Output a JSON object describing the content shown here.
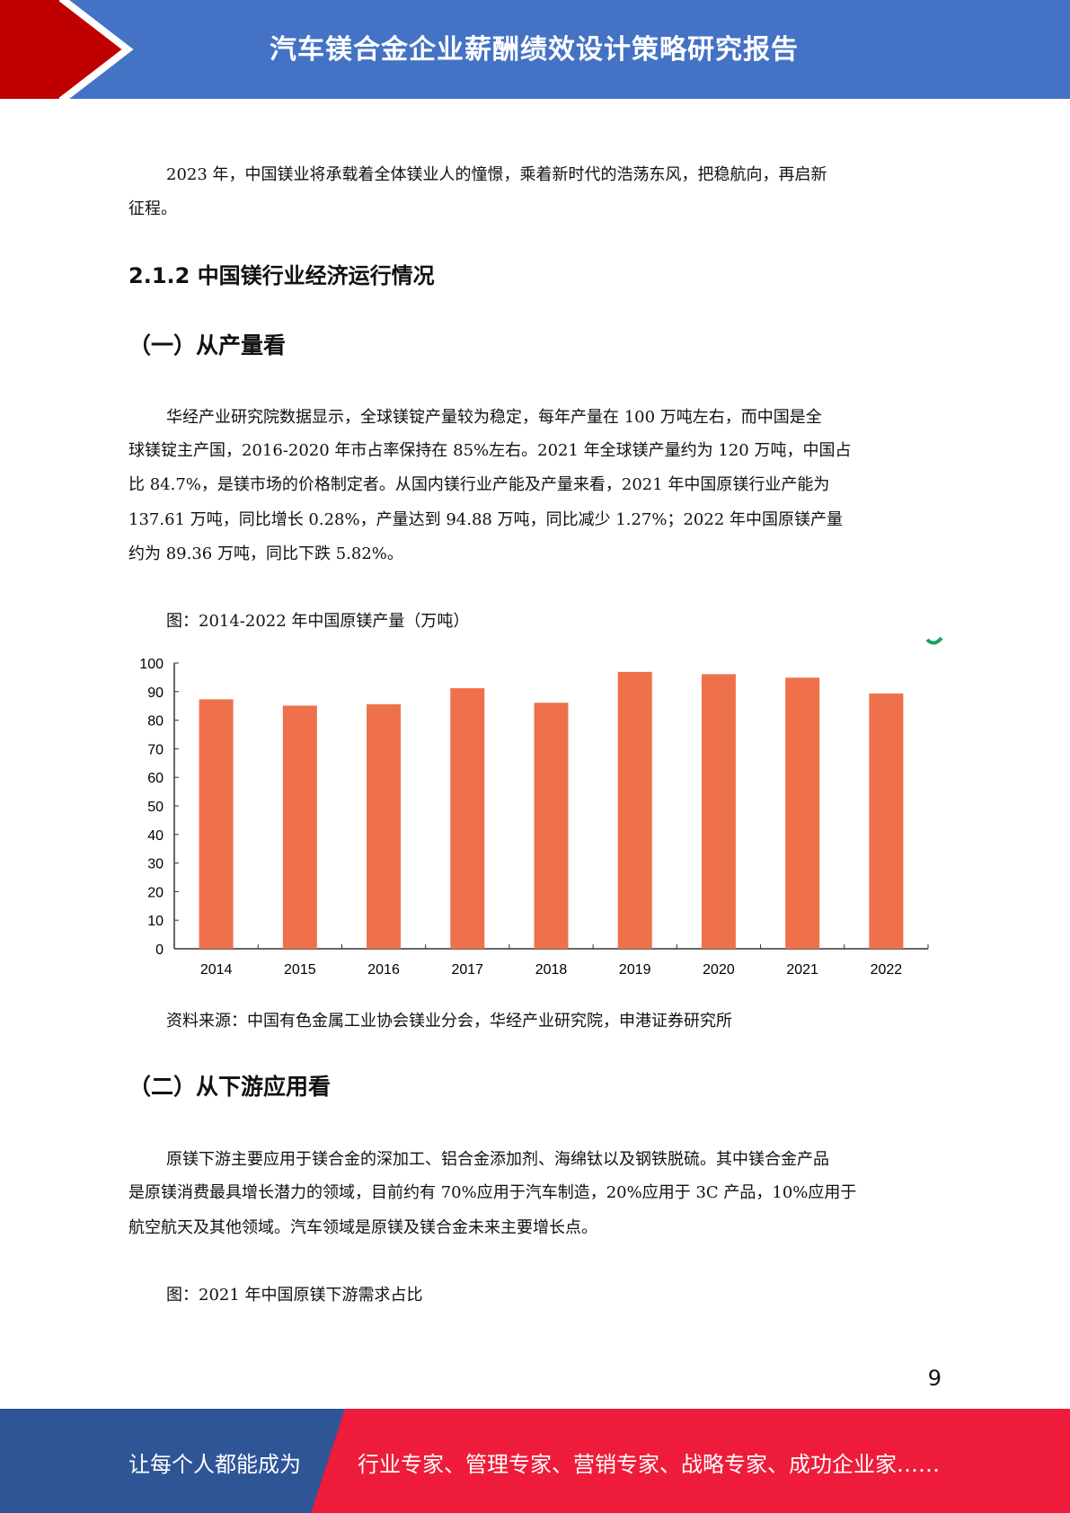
{
  "header": {
    "title": "汽车镁合金企业薪酬绩效设计策略研究报告"
  },
  "body": {
    "p1": [
      "2023 年，中国镁业将承载着全体镁业人的憧憬，乘着新时代的浩荡东风，把稳航向，再启新",
      "征程。"
    ],
    "h_212": "2.1.2 中国镁行业经济运行情况",
    "h_1": "（一）从产量看",
    "p2": [
      "华经产业研究院数据显示，全球镁锭产量较为稳定，每年产量在 100 万吨左右，而中国是全",
      "球镁锭主产国，2016-2020 年市占率保持在 85%左右。2021 年全球镁产量约为 120 万吨，中国占",
      "比 84.7%，是镁市场的价格制定者。从国内镁行业产能及产量来看，2021 年中国原镁行业产能为",
      "137.61 万吨，同比增长 0.28%，产量达到 94.88 万吨，同比减少 1.27%；2022 年中国原镁产量",
      "约为 89.36 万吨，同比下跌 5.82%。"
    ],
    "fig1_caption": "图：2014-2022 年中国原镁产量（万吨）",
    "fig1_source": "资料来源：中国有色金属工业协会镁业分会，华经产业研究院，申港证券研究所",
    "h_2": "（二）从下游应用看",
    "p3": [
      "原镁下游主要应用于镁合金的深加工、铝合金添加剂、海绵钛以及钢铁脱硫。其中镁合金产品",
      "是原镁消费最具增长潜力的领域，目前约有 70%应用于汽车制造，20%应用于 3C 产品，10%应用于",
      "航空航天及其他领域。汽车领域是原镁及镁合金未来主要增长点。"
    ],
    "fig2_caption": "图：2021 年中国原镁下游需求占比"
  },
  "page_number": "9",
  "footer": {
    "left": "让每个人都能成为",
    "right": "行业专家、管理专家、营销专家、战略专家、成功企业家……"
  },
  "colors": {
    "header_blue": "#4472c4",
    "header_red": "#c00000",
    "footer_blue": "#2f5597",
    "footer_red": "#ee1c3a",
    "bar": "#ee714b"
  },
  "chart_data": {
    "type": "bar",
    "categories": [
      "2014",
      "2015",
      "2016",
      "2017",
      "2018",
      "2019",
      "2020",
      "2021",
      "2022"
    ],
    "values": [
      87.3,
      85.1,
      85.6,
      91.2,
      86.1,
      96.9,
      96.1,
      94.88,
      89.36
    ],
    "ylim": [
      0,
      100
    ],
    "yticks": [
      0,
      10,
      20,
      30,
      40,
      50,
      60,
      70,
      80,
      90,
      100
    ],
    "grid": false
  }
}
